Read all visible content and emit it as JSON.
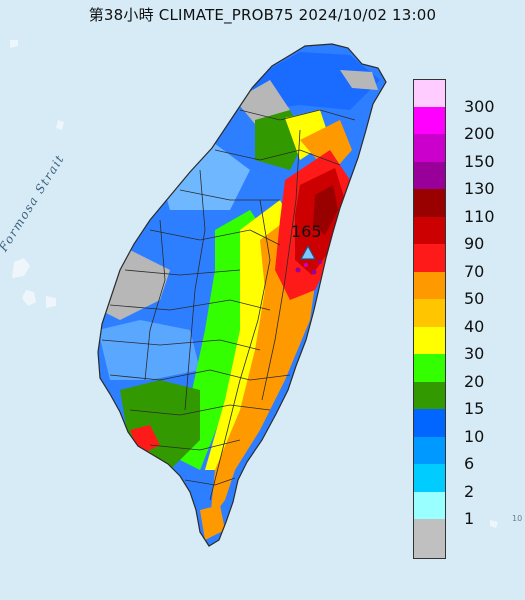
{
  "title": "第38小時  CLIMATE_PROB75 2024/10/02 13:00",
  "strait_label": "Formosa Strait",
  "peak": {
    "label": "165"
  },
  "corner_mark": "10",
  "legend": {
    "bins": [
      {
        "label": "300",
        "color": "#ffccff"
      },
      {
        "label": "200",
        "color": "#ff00ff"
      },
      {
        "label": "150",
        "color": "#cc00cc"
      },
      {
        "label": "130",
        "color": "#990099"
      },
      {
        "label": "110",
        "color": "#990000"
      },
      {
        "label": "90",
        "color": "#cc0000"
      },
      {
        "label": "70",
        "color": "#ff1a1a"
      },
      {
        "label": "50",
        "color": "#ff9900"
      },
      {
        "label": "40",
        "color": "#ffc600"
      },
      {
        "label": "30",
        "color": "#ffff00"
      },
      {
        "label": "20",
        "color": "#33ff00"
      },
      {
        "label": "15",
        "color": "#339900"
      },
      {
        "label": "10",
        "color": "#0066ff"
      },
      {
        "label": "6",
        "color": "#0099ff"
      },
      {
        "label": "2",
        "color": "#00ccff"
      },
      {
        "label": "1",
        "color": "#99ffff"
      },
      {
        "label": "",
        "color": "#c0c0c0"
      }
    ]
  },
  "colors": {
    "sea": "#d7ebf6",
    "no_data": "#b7b7b7",
    "boundary": "#2b2b2b"
  }
}
